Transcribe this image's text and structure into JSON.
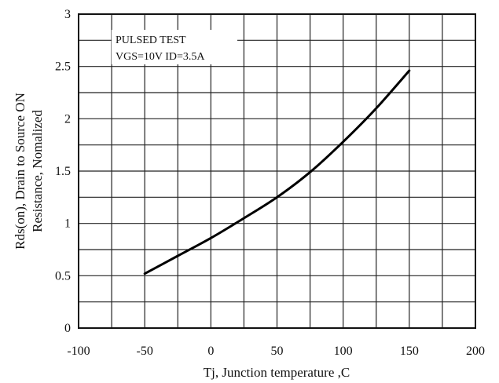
{
  "chart_data": {
    "type": "line",
    "title": "",
    "xlabel": "Tj, Junction temperature ,C",
    "ylabel": [
      "Rds(on), Drain to Source ON",
      "Resistance, Nomalized"
    ],
    "xlim": [
      -100,
      200
    ],
    "ylim": [
      0,
      3
    ],
    "xticks": [
      -100,
      -50,
      0,
      50,
      100,
      150,
      200
    ],
    "yticks": [
      0,
      0.5,
      1,
      1.5,
      2,
      2.5,
      3
    ],
    "xtick_labels": [
      "-100",
      "-50",
      "0",
      "50",
      "100",
      "150",
      "200"
    ],
    "ytick_labels": [
      "0",
      "0.5",
      "1",
      "1.5",
      "2",
      "2.5",
      "3"
    ],
    "grid": true,
    "annotations": [
      "PULSED    TEST",
      "VGS=10V    ID=3.5A"
    ],
    "series": [
      {
        "color": "#000000",
        "x": [
          -50,
          -25,
          0,
          25,
          50,
          75,
          100,
          125,
          150
        ],
        "y": [
          0.52,
          0.69,
          0.86,
          1.05,
          1.25,
          1.49,
          1.78,
          2.1,
          2.46
        ]
      }
    ]
  }
}
